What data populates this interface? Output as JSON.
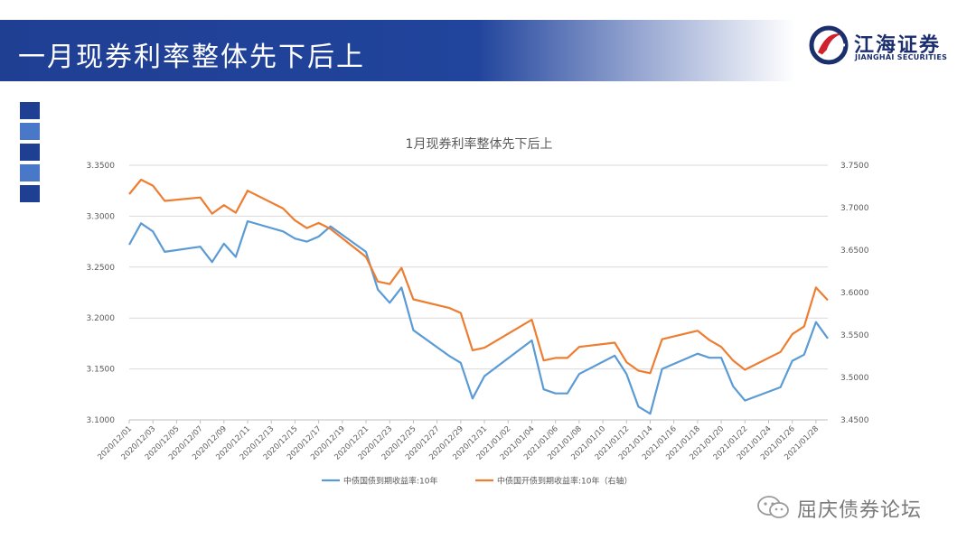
{
  "header": {
    "title": "一月现券利率整体先下后上",
    "logo_cn": "江海证券",
    "logo_en": "JIANGHAI SECURITIES"
  },
  "footer": {
    "source": "屈庆债券论坛",
    "icon": "wechat-icon"
  },
  "colors": {
    "banner": "#1f3f93",
    "series1": "#5b9bd5",
    "series2": "#ed7d31",
    "grid": "#d9d9d9"
  },
  "chart_data": {
    "type": "line",
    "title": "1月现券利率整体先下后上",
    "xlabel": "",
    "ylabel": "",
    "ylim": [
      3.1,
      3.35
    ],
    "y2lim": [
      3.45,
      3.75
    ],
    "yticks": [
      "3.1000",
      "3.1500",
      "3.2000",
      "3.2500",
      "3.3000",
      "3.3500"
    ],
    "y2ticks": [
      "3.4500",
      "3.5000",
      "3.5500",
      "3.6000",
      "3.6500",
      "3.7000",
      "3.7500"
    ],
    "grid": true,
    "legend_position": "bottom",
    "x": [
      "2020/12/01",
      "2020/12/02",
      "2020/12/03",
      "2020/12/04",
      "2020/12/07",
      "2020/12/08",
      "2020/12/09",
      "2020/12/10",
      "2020/12/11",
      "2020/12/14",
      "2020/12/15",
      "2020/12/16",
      "2020/12/17",
      "2020/12/18",
      "2020/12/21",
      "2020/12/22",
      "2020/12/23",
      "2020/12/24",
      "2020/12/25",
      "2020/12/28",
      "2020/12/29",
      "2020/12/30",
      "2020/12/31",
      "2021/01/04",
      "2021/01/05",
      "2021/01/06",
      "2021/01/07",
      "2021/01/08",
      "2021/01/11",
      "2021/01/12",
      "2021/01/13",
      "2021/01/14",
      "2021/01/15",
      "2021/01/18",
      "2021/01/19",
      "2021/01/20",
      "2021/01/21",
      "2021/01/22",
      "2021/01/25",
      "2021/01/26",
      "2021/01/27",
      "2021/01/28",
      "2021/01/29"
    ],
    "x_tick_labels": [
      "2020/12/01",
      "2020/12/03",
      "2020/12/05",
      "2020/12/07",
      "2020/12/09",
      "2020/12/11",
      "2020/12/13",
      "2020/12/15",
      "2020/12/17",
      "2020/12/19",
      "2020/12/21",
      "2020/12/23",
      "2020/12/25",
      "2020/12/27",
      "2020/12/29",
      "2020/12/31",
      "2021/01/02",
      "2021/01/04",
      "2021/01/06",
      "2021/01/08",
      "2021/01/10",
      "2021/01/12",
      "2021/01/14",
      "2021/01/16",
      "2021/01/18",
      "2021/01/20",
      "2021/01/22",
      "2021/01/24",
      "2021/01/26",
      "2021/01/28"
    ],
    "series": [
      {
        "name": "中债国债到期收益率:10年",
        "axis": "left",
        "color": "#5b9bd5",
        "values": [
          3.272,
          3.293,
          3.285,
          3.265,
          3.27,
          3.255,
          3.273,
          3.26,
          3.295,
          3.285,
          3.278,
          3.275,
          3.28,
          3.29,
          3.265,
          3.228,
          3.215,
          3.23,
          3.188,
          3.163,
          3.156,
          3.121,
          3.143,
          3.178,
          3.13,
          3.126,
          3.126,
          3.145,
          3.163,
          3.145,
          3.113,
          3.106,
          3.15,
          3.165,
          3.161,
          3.161,
          3.133,
          3.119,
          3.132,
          3.158,
          3.164,
          3.196,
          3.18
        ]
      },
      {
        "name": "中债国开债到期收益率:10年（右轴）",
        "axis": "right",
        "color": "#ed7d31",
        "values": [
          3.716,
          3.733,
          3.726,
          3.708,
          3.712,
          3.693,
          3.703,
          3.694,
          3.72,
          3.699,
          3.685,
          3.676,
          3.682,
          3.675,
          3.642,
          3.613,
          3.61,
          3.629,
          3.592,
          3.582,
          3.576,
          3.532,
          3.535,
          3.568,
          3.52,
          3.523,
          3.523,
          3.536,
          3.541,
          3.518,
          3.508,
          3.505,
          3.545,
          3.555,
          3.544,
          3.536,
          3.52,
          3.509,
          3.53,
          3.551,
          3.56,
          3.606,
          3.591
        ]
      }
    ]
  }
}
